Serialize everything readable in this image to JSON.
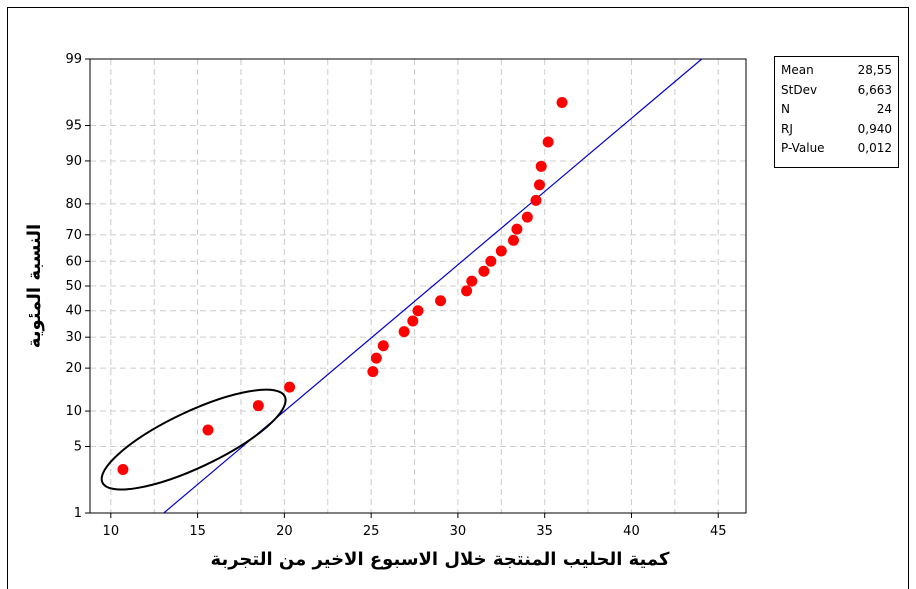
{
  "chart_data": {
    "type": "scatter",
    "title": "",
    "xlabel": "كمية الحليب المنتجة خلال الاسبوع الاخير من التجربة",
    "ylabel": "النسبة المئوية",
    "x_ticks": [
      10,
      15,
      20,
      25,
      30,
      35,
      40,
      45
    ],
    "y_ticks": [
      1,
      5,
      10,
      20,
      30,
      40,
      50,
      60,
      70,
      80,
      90,
      95,
      99
    ],
    "y_scale": "normal-probability",
    "xlim": [
      8.8,
      46.6
    ],
    "ylim": [
      1,
      99
    ],
    "grid": true,
    "points": [
      {
        "x": 10.7,
        "y": 3.0
      },
      {
        "x": 15.6,
        "y": 7.0
      },
      {
        "x": 18.5,
        "y": 11.0
      },
      {
        "x": 20.3,
        "y": 15.0
      },
      {
        "x": 25.1,
        "y": 19.0
      },
      {
        "x": 25.3,
        "y": 23.0
      },
      {
        "x": 25.7,
        "y": 27.0
      },
      {
        "x": 26.9,
        "y": 32.0
      },
      {
        "x": 27.4,
        "y": 36.0
      },
      {
        "x": 27.7,
        "y": 40.0
      },
      {
        "x": 29.0,
        "y": 44.0
      },
      {
        "x": 30.5,
        "y": 48.0
      },
      {
        "x": 30.8,
        "y": 52.0
      },
      {
        "x": 31.5,
        "y": 56.0
      },
      {
        "x": 31.9,
        "y": 60.0
      },
      {
        "x": 32.5,
        "y": 64.0
      },
      {
        "x": 33.2,
        "y": 68.0
      },
      {
        "x": 33.4,
        "y": 72.0
      },
      {
        "x": 34.0,
        "y": 76.0
      },
      {
        "x": 34.5,
        "y": 81.0
      },
      {
        "x": 34.7,
        "y": 85.0
      },
      {
        "x": 34.8,
        "y": 89.0
      },
      {
        "x": 35.2,
        "y": 93.0
      },
      {
        "x": 36.0,
        "y": 97.0
      }
    ],
    "fit_line": {
      "mean": 28.55,
      "stdev": 6.663
    },
    "annotation": "ellipse around the three lowest points",
    "colors": {
      "points": "#ff0000",
      "fit_line": "#0000cc",
      "grid": "#cccccc"
    }
  },
  "stats": [
    {
      "label": "Mean",
      "value": "28,55"
    },
    {
      "label": "StDev",
      "value": "6,663"
    },
    {
      "label": "N",
      "value": "24"
    },
    {
      "label": "RJ",
      "value": "0,940"
    },
    {
      "label": "P-Value",
      "value": "0,012"
    }
  ]
}
